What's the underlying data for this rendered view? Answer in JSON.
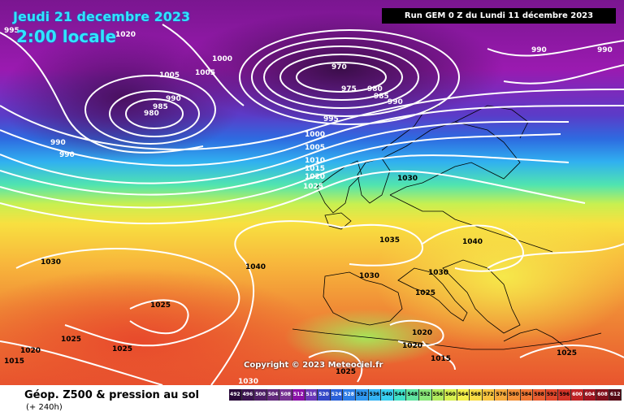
{
  "header": {
    "date": "Jeudi 21 decembre 2023",
    "time": "2:00 locale",
    "run": "Run GEM 0 Z du Lundi 11 décembre 2023"
  },
  "copyright": "Copyright © 2023 Meteociel.fr",
  "footer": {
    "title": "Géop. Z500 & pression au sol",
    "subtitle": "(+ 240h)"
  },
  "legend": {
    "values": [
      "492",
      "496",
      "500",
      "504",
      "508",
      "512",
      "516",
      "520",
      "524",
      "528",
      "532",
      "536",
      "540",
      "544",
      "548",
      "552",
      "556",
      "560",
      "564",
      "568",
      "572",
      "576",
      "580",
      "584",
      "588",
      "592",
      "596",
      "600",
      "604",
      "608",
      "612"
    ],
    "colors": [
      "#2a0a3a",
      "#3c1450",
      "#4e1e66",
      "#62287c",
      "#763292",
      "#8a10a8",
      "#6a38b8",
      "#3448c8",
      "#2a60d8",
      "#2c7ce6",
      "#3098f0",
      "#34b4f4",
      "#38d0f0",
      "#40e0c8",
      "#60e4a0",
      "#8ae87a",
      "#b2ec5e",
      "#d8f050",
      "#f4f04a",
      "#f8dc44",
      "#f8c440",
      "#f6aa3c",
      "#f49038",
      "#f07634",
      "#ea5e30",
      "#e0482c",
      "#d43428",
      "#c02224",
      "#a01420",
      "#80101c",
      "#580a16"
    ]
  },
  "map_labels": {
    "low_center": [
      "970",
      "975",
      "980",
      "985",
      "990"
    ],
    "low_west": [
      "980",
      "985",
      "990"
    ],
    "north_band": [
      "995",
      "1000",
      "1005",
      "1010",
      "1015",
      "1020",
      "1025"
    ],
    "nw_top": [
      "995",
      "1020",
      "1000",
      "1005",
      "1005"
    ],
    "ne_top": [
      "990",
      "990"
    ],
    "sw": [
      "1030",
      "1040",
      "1025",
      "1025",
      "1020",
      "1025",
      "1015"
    ],
    "bottom": [
      "1030"
    ],
    "center": [
      "1030",
      "1035",
      "1030",
      "1025",
      "1030"
    ],
    "east": [
      "1040",
      "1020",
      "1020",
      "1015",
      "1025",
      "1025"
    ]
  }
}
